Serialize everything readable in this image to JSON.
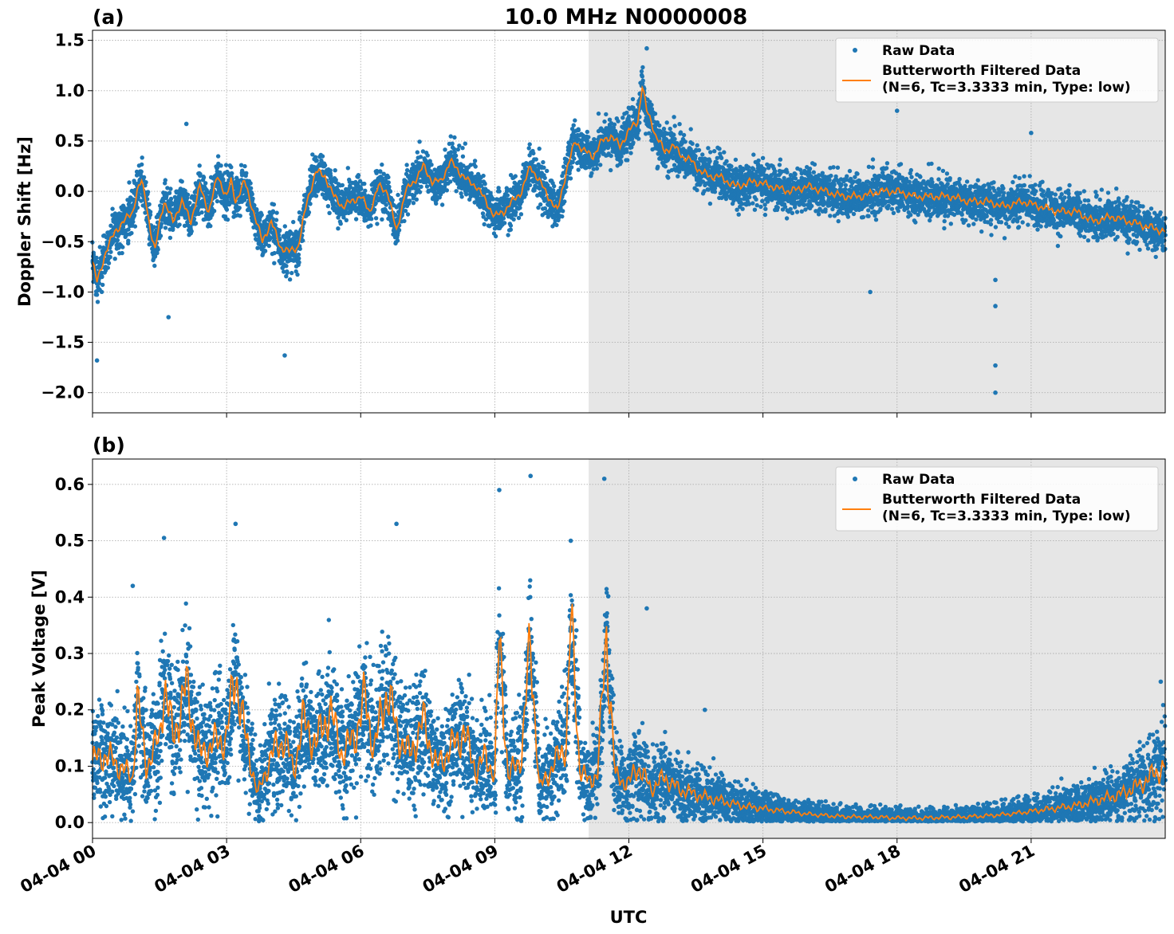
{
  "title": "10.0 MHz N0000008",
  "xlabel": "UTC",
  "x_tick_labels": [
    "04-04 00",
    "04-04 03",
    "04-04 06",
    "04-04 09",
    "04-04 12",
    "04-04 15",
    "04-04 18",
    "04-04 21"
  ],
  "colors": {
    "raw": "#1f77b4",
    "filtered": "#ff7f0e",
    "shade": "#e6e6e6",
    "grid": "#b0b0b0"
  },
  "chart_data": [
    {
      "panel_label": "(a)",
      "type": "scatter",
      "ylabel": "Doppler Shift [Hz]",
      "xlim_hours": [
        0,
        24
      ],
      "ylim": [
        -2.2,
        1.6
      ],
      "y_ticks": [
        -2.0,
        -1.5,
        -1.0,
        -0.5,
        0.0,
        0.5,
        1.0,
        1.5
      ],
      "y_tick_labels": [
        "−2.0",
        "−1.5",
        "−1.0",
        "−0.5",
        "0.0",
        "0.5",
        "1.0",
        "1.5"
      ],
      "shaded_x_hours": [
        11.1,
        24
      ],
      "grid": true,
      "legend_position": "top-right",
      "legend": [
        "Raw Data",
        "Butterworth Filtered Data",
        "(N=6, Tc=3.3333 min, Type: low)"
      ],
      "series": [
        {
          "name": "Butterworth Filtered Data",
          "kind": "line",
          "x_hours": [
            0,
            0.1,
            0.3,
            0.5,
            0.7,
            0.9,
            1.0,
            1.1,
            1.2,
            1.3,
            1.4,
            1.5,
            1.6,
            1.8,
            2.0,
            2.2,
            2.4,
            2.6,
            2.8,
            3.0,
            3.1,
            3.2,
            3.4,
            3.6,
            3.8,
            4.0,
            4.2,
            4.4,
            4.6,
            4.8,
            5.0,
            5.2,
            5.4,
            5.6,
            5.8,
            6.0,
            6.2,
            6.4,
            6.6,
            6.8,
            7.0,
            7.2,
            7.4,
            7.6,
            7.8,
            8.0,
            8.2,
            8.4,
            8.6,
            8.8,
            9.0,
            9.2,
            9.4,
            9.6,
            9.8,
            10.0,
            10.2,
            10.4,
            10.6,
            10.8,
            11.0,
            11.2,
            11.4,
            11.6,
            11.8,
            12.0,
            12.2,
            12.3,
            12.4,
            12.5,
            12.6,
            12.8,
            13.0,
            13.2,
            13.4,
            13.6,
            13.8,
            14.0,
            14.4,
            14.8,
            15.2,
            15.6,
            16.0,
            16.4,
            16.8,
            17.2,
            17.6,
            18.0,
            18.4,
            18.8,
            19.2,
            19.6,
            20.0,
            20.4,
            20.8,
            21.2,
            21.6,
            22.0,
            22.4,
            22.8,
            23.2,
            23.6,
            24.0
          ],
          "values": [
            -0.7,
            -0.9,
            -0.6,
            -0.4,
            -0.3,
            -0.2,
            0.0,
            0.1,
            -0.1,
            -0.4,
            -0.6,
            -0.3,
            -0.1,
            -0.3,
            -0.1,
            -0.3,
            0.05,
            -0.2,
            0.15,
            -0.05,
            0.1,
            -0.1,
            0.1,
            -0.2,
            -0.5,
            -0.3,
            -0.55,
            -0.6,
            -0.55,
            -0.1,
            0.2,
            0.15,
            -0.05,
            -0.15,
            -0.1,
            -0.05,
            -0.2,
            0.05,
            0.0,
            -0.4,
            0.0,
            0.1,
            0.25,
            0.1,
            0.1,
            0.3,
            0.2,
            0.1,
            0.05,
            -0.1,
            -0.25,
            -0.2,
            -0.1,
            0.0,
            0.25,
            0.1,
            -0.05,
            -0.2,
            0.2,
            0.5,
            0.4,
            0.35,
            0.5,
            0.55,
            0.45,
            0.6,
            0.7,
            1.05,
            0.8,
            0.7,
            0.55,
            0.4,
            0.45,
            0.35,
            0.3,
            0.2,
            0.15,
            0.15,
            0.05,
            0.1,
            0.05,
            0.0,
            0.05,
            0.0,
            -0.05,
            -0.05,
            0.0,
            0.0,
            -0.05,
            -0.05,
            -0.05,
            -0.1,
            -0.1,
            -0.15,
            -0.1,
            -0.15,
            -0.2,
            -0.2,
            -0.3,
            -0.25,
            -0.3,
            -0.35,
            -0.4
          ]
        },
        {
          "name": "Raw Data",
          "kind": "scatter",
          "spread": 0.22,
          "outliers": [
            {
              "x": 2.1,
              "y": 0.67
            },
            {
              "x": 1.7,
              "y": -1.25
            },
            {
              "x": 4.3,
              "y": -1.63
            },
            {
              "x": 17.4,
              "y": -1.0
            },
            {
              "x": 20.2,
              "y": -1.73
            },
            {
              "x": 20.2,
              "y": -2.0
            },
            {
              "x": 20.2,
              "y": -1.14
            },
            {
              "x": 20.2,
              "y": -0.88
            },
            {
              "x": 12.4,
              "y": 1.42
            },
            {
              "x": 0.1,
              "y": -1.68
            },
            {
              "x": 18.0,
              "y": 0.8
            },
            {
              "x": 21.0,
              "y": 0.58
            }
          ]
        }
      ]
    },
    {
      "panel_label": "(b)",
      "type": "scatter",
      "ylabel": "Peak Voltage [V]",
      "xlim_hours": [
        0,
        24
      ],
      "ylim": [
        -0.028,
        0.645
      ],
      "y_ticks": [
        0.0,
        0.1,
        0.2,
        0.3,
        0.4,
        0.5,
        0.6
      ],
      "y_tick_labels": [
        "0.0",
        "0.1",
        "0.2",
        "0.3",
        "0.4",
        "0.5",
        "0.6"
      ],
      "shaded_x_hours": [
        11.1,
        24
      ],
      "grid": true,
      "legend_position": "top-right",
      "legend": [
        "Raw Data",
        "Butterworth Filtered Data",
        "(N=6, Tc=3.3333 min, Type: low)"
      ],
      "series": [
        {
          "name": "Butterworth Filtered Data",
          "kind": "line",
          "x_hours": [
            0,
            0.3,
            0.6,
            0.9,
            1.0,
            1.2,
            1.5,
            1.6,
            1.8,
            2.1,
            2.4,
            2.7,
            3.0,
            3.2,
            3.4,
            3.7,
            4.0,
            4.3,
            4.5,
            4.7,
            5.0,
            5.3,
            5.6,
            5.9,
            6.1,
            6.3,
            6.6,
            6.8,
            7.1,
            7.4,
            7.7,
            8.0,
            8.3,
            8.6,
            8.8,
            9.0,
            9.1,
            9.3,
            9.6,
            9.8,
            10.0,
            10.3,
            10.6,
            10.7,
            10.9,
            11.1,
            11.3,
            11.5,
            11.7,
            12.0,
            12.2,
            12.5,
            12.8,
            13.1,
            13.5,
            14.0,
            14.5,
            15.0,
            15.5,
            16.0,
            16.5,
            17.0,
            17.5,
            18.0,
            18.5,
            19.0,
            19.5,
            20.0,
            20.5,
            21.0,
            21.5,
            22.0,
            22.5,
            23.0,
            23.5,
            23.8,
            24.0
          ],
          "values": [
            0.11,
            0.12,
            0.1,
            0.08,
            0.22,
            0.1,
            0.15,
            0.25,
            0.15,
            0.24,
            0.12,
            0.14,
            0.15,
            0.27,
            0.16,
            0.05,
            0.12,
            0.15,
            0.09,
            0.18,
            0.14,
            0.2,
            0.12,
            0.16,
            0.22,
            0.13,
            0.24,
            0.16,
            0.12,
            0.18,
            0.1,
            0.13,
            0.16,
            0.09,
            0.12,
            0.08,
            0.33,
            0.08,
            0.12,
            0.32,
            0.06,
            0.1,
            0.14,
            0.36,
            0.1,
            0.07,
            0.09,
            0.33,
            0.08,
            0.07,
            0.1,
            0.06,
            0.08,
            0.06,
            0.05,
            0.04,
            0.03,
            0.025,
            0.02,
            0.015,
            0.012,
            0.01,
            0.01,
            0.008,
            0.008,
            0.009,
            0.01,
            0.012,
            0.015,
            0.02,
            0.025,
            0.03,
            0.04,
            0.05,
            0.07,
            0.09,
            0.1
          ]
        },
        {
          "name": "Raw Data",
          "kind": "scatter",
          "spread": 0.07,
          "outliers": [
            {
              "x": 9.8,
              "y": 0.615
            },
            {
              "x": 11.45,
              "y": 0.61
            },
            {
              "x": 9.1,
              "y": 0.59
            },
            {
              "x": 3.2,
              "y": 0.53
            },
            {
              "x": 6.8,
              "y": 0.53
            },
            {
              "x": 1.6,
              "y": 0.505
            },
            {
              "x": 10.7,
              "y": 0.5
            },
            {
              "x": 12.4,
              "y": 0.38
            },
            {
              "x": 0.9,
              "y": 0.42
            },
            {
              "x": 13.7,
              "y": 0.2
            },
            {
              "x": 23.9,
              "y": 0.25
            }
          ]
        }
      ]
    }
  ]
}
